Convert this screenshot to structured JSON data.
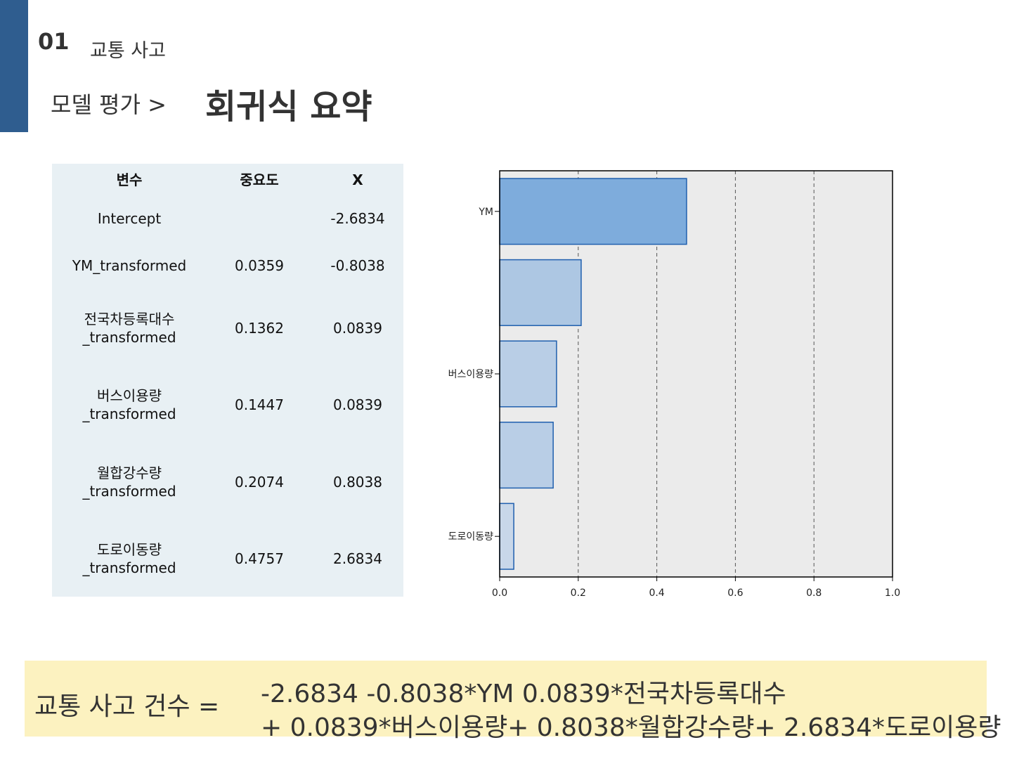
{
  "header": {
    "section_number": "01",
    "section_title": "교통 사고",
    "breadcrumb": "모델 평가 >",
    "page_title": "회귀식 요약"
  },
  "table": {
    "headers": [
      "변수",
      "중요도",
      "X"
    ],
    "rows": [
      {
        "variable_line1": "Intercept",
        "variable_line2": "",
        "importance": "",
        "x": "-2.6834"
      },
      {
        "variable_line1": "YM_transformed",
        "variable_line2": "",
        "importance": "0.0359",
        "x": "-0.8038"
      },
      {
        "variable_line1": "전국차등록대수",
        "variable_line2": "_transformed",
        "importance": "0.1362",
        "x": "0.0839"
      },
      {
        "variable_line1": "버스이용량",
        "variable_line2": "_transformed",
        "importance": "0.1447",
        "x": "0.0839"
      },
      {
        "variable_line1": "월합강수량",
        "variable_line2": "_transformed",
        "importance": "0.2074",
        "x": "0.8038"
      },
      {
        "variable_line1": "도로이동량",
        "variable_line2": "_transformed",
        "importance": "0.4757",
        "x": "2.6834"
      }
    ]
  },
  "chart_data": {
    "type": "bar",
    "orientation": "horizontal",
    "categories": [
      "YM",
      "",
      "버스이용량",
      "",
      "도로이동량"
    ],
    "values": [
      0.4757,
      0.2074,
      0.1447,
      0.1362,
      0.0359
    ],
    "xlim": [
      0.0,
      1.0
    ],
    "xticks": [
      "0.0",
      "0.2",
      "0.4",
      "0.6",
      "0.8",
      "1.0"
    ],
    "grid": "vertical-dashed",
    "bar_colors": [
      "#7eacdc",
      "#adc7e3",
      "#b9cee6",
      "#b9cee6",
      "#c8d7e9"
    ],
    "plot_background": "#ebebeb"
  },
  "formula": {
    "lhs": "교통 사고 건수 =",
    "line1": "-2.6834 -0.8038*YM 0.0839*전국차등록대수",
    "line2": "+ 0.0839*버스이용량+ 0.8038*월합강수량+ 2.6834*도로이용량"
  },
  "colors": {
    "accent": "#2f5d8f",
    "table_bg": "#e8f0f4",
    "formula_bg": "#fcf2c0",
    "bar_edge": "#1f5fae"
  }
}
